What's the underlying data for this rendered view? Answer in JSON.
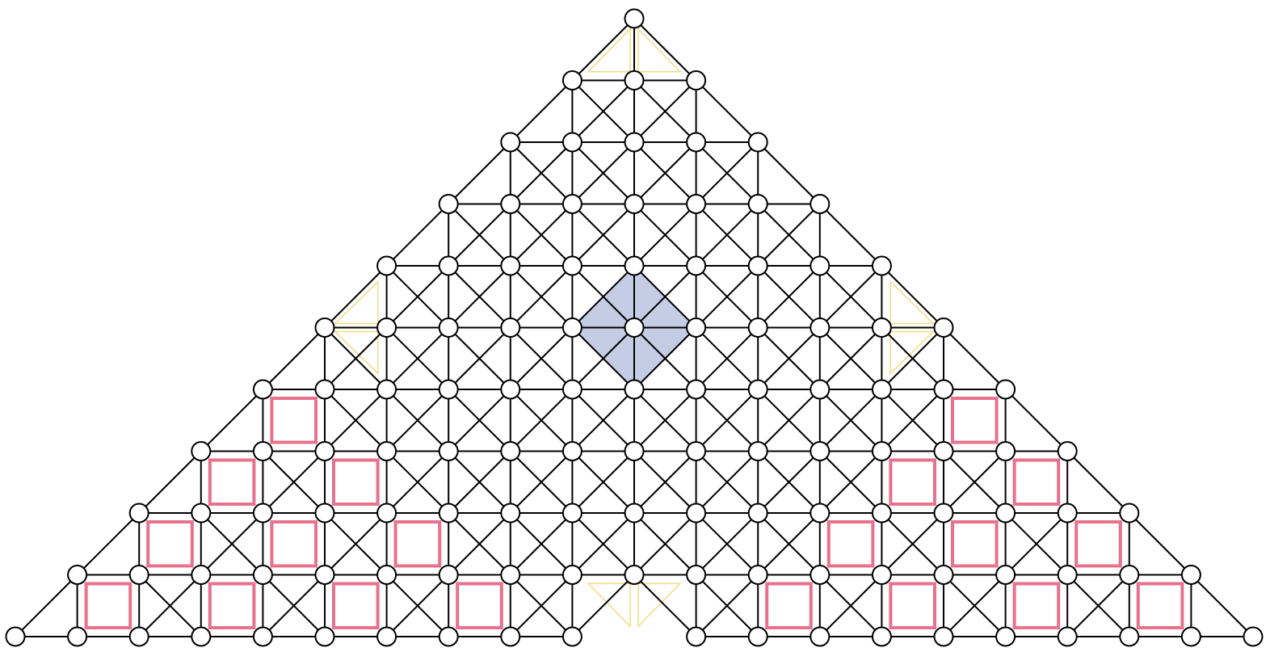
{
  "colors": {
    "background": "#ffffff",
    "edge": "#000000",
    "node_fill": "#ffffff",
    "node_stroke": "#000000",
    "square_stroke": "#e8718c",
    "triangle_stroke": "#f6dc8c",
    "diamond_fill": "#c5cde5"
  },
  "diagram": {
    "shape": "triangular-lattice-graph",
    "rows": 11,
    "apex_row": 0,
    "missing_nodes": [
      [
        10,
        0
      ]
    ],
    "highlight_squares": [
      [
        6,
        -6
      ],
      [
        6,
        5
      ],
      [
        7,
        -7
      ],
      [
        7,
        -5
      ],
      [
        7,
        4
      ],
      [
        7,
        6
      ],
      [
        8,
        -8
      ],
      [
        8,
        -6
      ],
      [
        8,
        -4
      ],
      [
        8,
        3
      ],
      [
        8,
        5
      ],
      [
        8,
        7
      ],
      [
        9,
        -9
      ],
      [
        9,
        -7
      ],
      [
        9,
        -5
      ],
      [
        9,
        -3
      ],
      [
        9,
        2
      ],
      [
        9,
        4
      ],
      [
        9,
        6
      ],
      [
        9,
        8
      ]
    ],
    "highlight_triangles": [
      {
        "row": 0,
        "col": 0,
        "direction": "down"
      },
      {
        "row": 5,
        "col": -5,
        "direction": "left"
      },
      {
        "row": 5,
        "col": 5,
        "direction": "right"
      },
      {
        "row": 10,
        "col": 0,
        "direction": "up"
      }
    ],
    "highlight_diamond": {
      "row": 5,
      "col": 0
    }
  }
}
